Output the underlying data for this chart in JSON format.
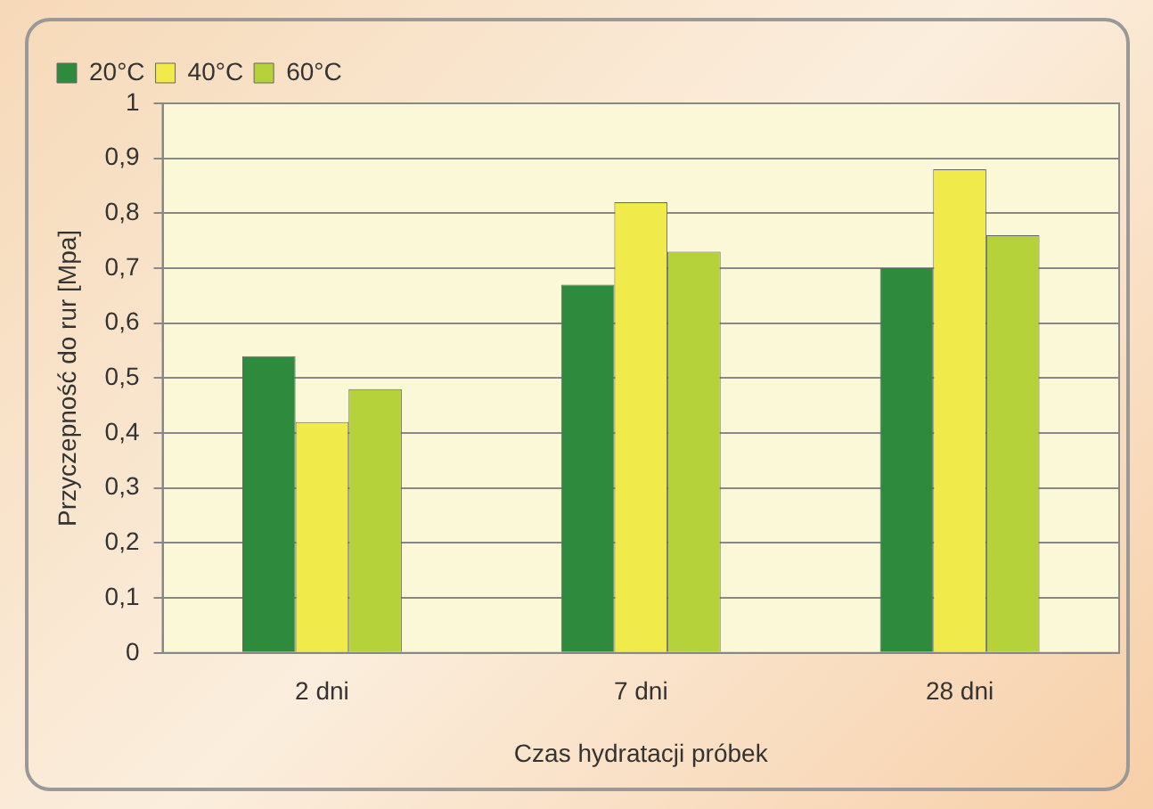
{
  "chart_data": {
    "type": "bar",
    "xlabel": "Czas hydratacji próbek",
    "ylabel": "Przyczepność do rur [Mpa]",
    "categories": [
      "2 dni",
      "7 dni",
      "28 dni"
    ],
    "series": [
      {
        "name": "20°C",
        "color": "#2e8b3e",
        "values": [
          0.54,
          0.67,
          0.7
        ]
      },
      {
        "name": "40°C",
        "color": "#f0ea4a",
        "values": [
          0.42,
          0.82,
          0.88
        ]
      },
      {
        "name": "60°C",
        "color": "#b5d23a",
        "values": [
          0.48,
          0.73,
          0.76
        ]
      }
    ],
    "ylim": [
      0,
      1
    ],
    "yticks": [
      {
        "value": 0,
        "label": "0"
      },
      {
        "value": 0.1,
        "label": "0,1"
      },
      {
        "value": 0.2,
        "label": "0,2"
      },
      {
        "value": 0.3,
        "label": "0,3"
      },
      {
        "value": 0.4,
        "label": "0,4"
      },
      {
        "value": 0.5,
        "label": "0,5"
      },
      {
        "value": 0.6,
        "label": "0,6"
      },
      {
        "value": 0.7,
        "label": "0,7"
      },
      {
        "value": 0.8,
        "label": "0,8"
      },
      {
        "value": 0.9,
        "label": "0,9"
      },
      {
        "value": 1,
        "label": "1"
      }
    ],
    "grid": "y",
    "legend": "top left"
  }
}
